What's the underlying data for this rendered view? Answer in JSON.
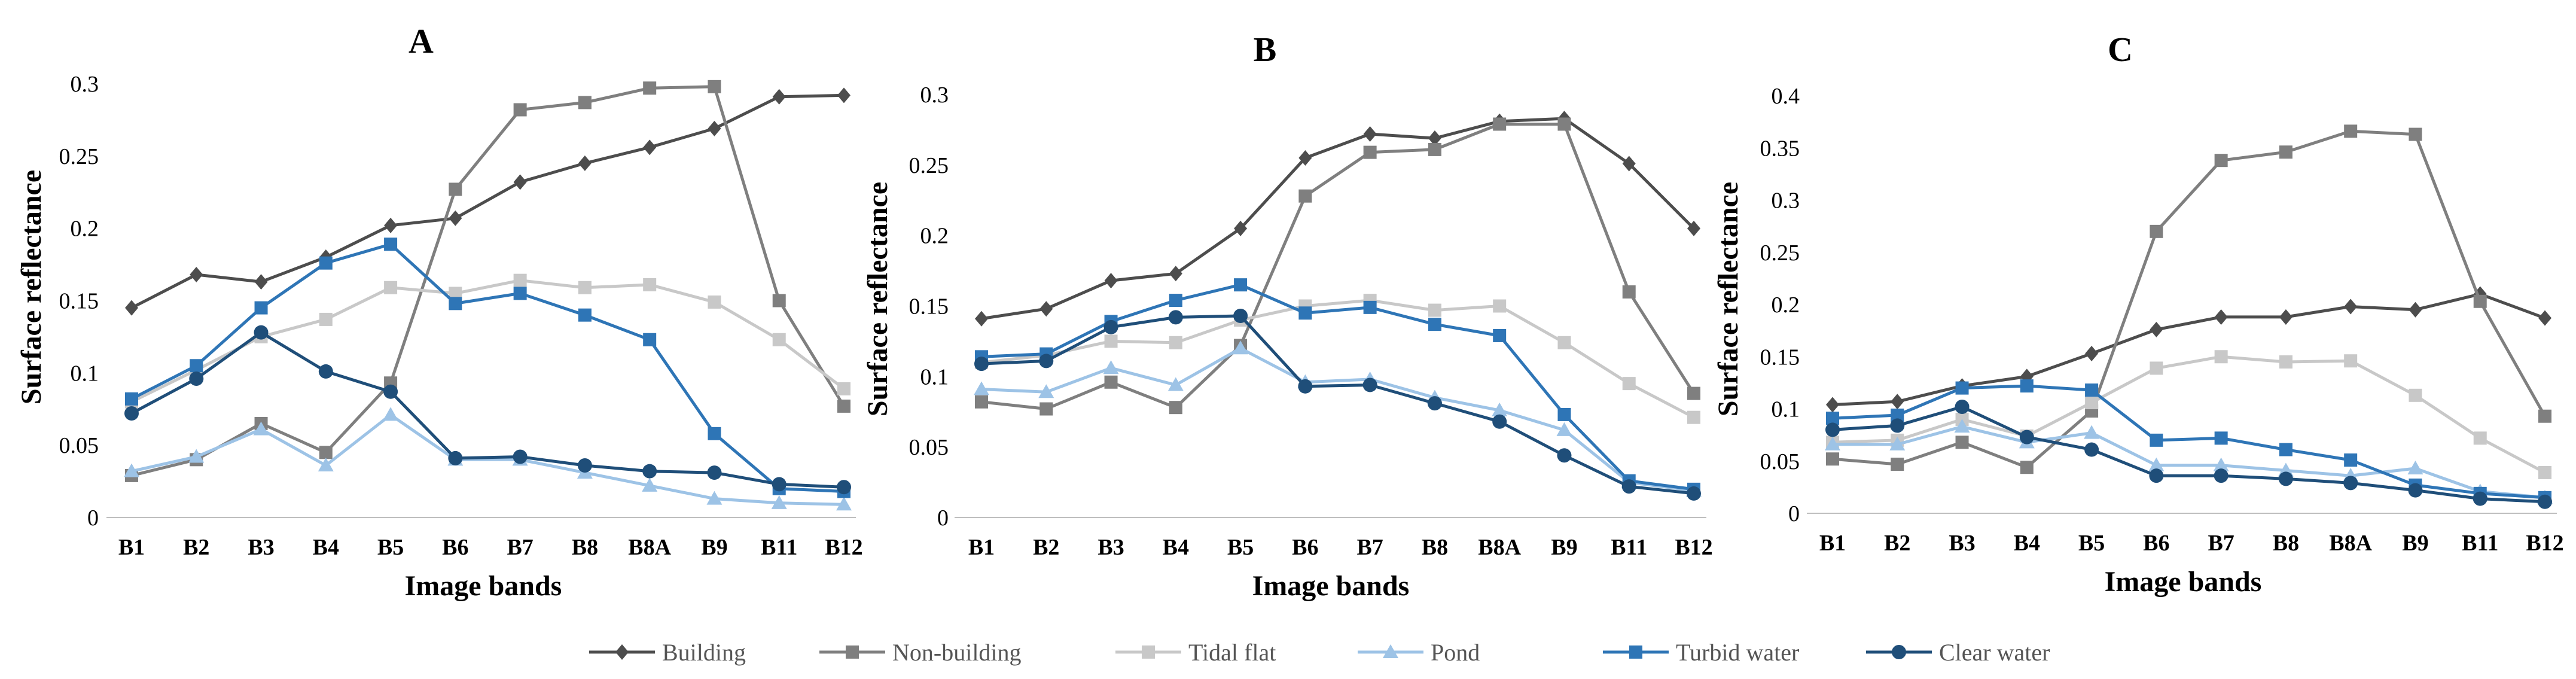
{
  "colors": {
    "Building": "#4d4d4d",
    "Non-building": "#7f7f7f",
    "Tidal flat": "#c8c8c8",
    "Pond": "#9dc3e6",
    "Turbid water": "#2e75b6",
    "Clear water": "#1f4e79"
  },
  "markers": {
    "Building": "diamond",
    "Non-building": "square",
    "Tidal flat": "square",
    "Pond": "triangle",
    "Turbid water": "square",
    "Clear water": "circle"
  },
  "legend": [
    "Building",
    "Non-building",
    "Tidal flat",
    "Pond",
    "Turbid water",
    "Clear water"
  ],
  "chart_data": [
    {
      "type": "line",
      "title": "A",
      "xlabel": "Image bands",
      "ylabel": "Surface reflectance",
      "ylim": [
        0,
        0.3
      ],
      "yticks": [
        0,
        0.05,
        0.1,
        0.15,
        0.2,
        0.25,
        0.3
      ],
      "ytick_labels": [
        "0",
        "0.05",
        "0.1",
        "0.15",
        "0.2",
        "0.25",
        "0.3"
      ],
      "categories": [
        "B1",
        "B2",
        "B3",
        "B4",
        "B5",
        "B6",
        "B7",
        "B8",
        "B8A",
        "B9",
        "B11",
        "B12"
      ],
      "series": [
        {
          "name": "Building",
          "values": [
            0.145,
            0.168,
            0.163,
            0.18,
            0.202,
            0.207,
            0.232,
            0.245,
            0.256,
            0.269,
            0.291,
            0.292
          ]
        },
        {
          "name": "Non-building",
          "values": [
            0.029,
            0.04,
            0.065,
            0.045,
            0.093,
            0.227,
            0.282,
            0.287,
            0.297,
            0.298,
            0.15,
            0.077
          ]
        },
        {
          "name": "Tidal flat",
          "values": [
            0.08,
            0.102,
            0.125,
            0.137,
            0.159,
            0.155,
            0.164,
            0.159,
            0.161,
            0.149,
            0.123,
            0.089
          ]
        },
        {
          "name": "Pond",
          "values": [
            0.032,
            0.042,
            0.061,
            0.036,
            0.071,
            0.04,
            0.04,
            0.031,
            0.022,
            0.013,
            0.01,
            0.009
          ]
        },
        {
          "name": "Turbid water",
          "values": [
            0.082,
            0.105,
            0.145,
            0.176,
            0.189,
            0.148,
            0.155,
            0.14,
            0.123,
            0.058,
            0.02,
            0.018
          ]
        },
        {
          "name": "Clear water",
          "values": [
            0.072,
            0.096,
            0.128,
            0.101,
            0.087,
            0.041,
            0.042,
            0.036,
            0.032,
            0.031,
            0.023,
            0.021
          ]
        }
      ]
    },
    {
      "type": "line",
      "title": "B",
      "xlabel": "Image bands",
      "ylabel": "Surface reflectance",
      "ylim": [
        0,
        0.3
      ],
      "yticks": [
        0,
        0.05,
        0.1,
        0.15,
        0.2,
        0.25,
        0.3
      ],
      "ytick_labels": [
        "0",
        "0.05",
        "0.1",
        "0.15",
        "0.2",
        "0.25",
        "0.3"
      ],
      "categories": [
        "B1",
        "B2",
        "B3",
        "B4",
        "B5",
        "B6",
        "B7",
        "B8",
        "B8A",
        "B9",
        "B11",
        "B12"
      ],
      "series": [
        {
          "name": "Building",
          "values": [
            0.141,
            0.148,
            0.168,
            0.173,
            0.205,
            0.255,
            0.272,
            0.269,
            0.281,
            0.283,
            0.251,
            0.205
          ]
        },
        {
          "name": "Non-building",
          "values": [
            0.082,
            0.077,
            0.096,
            0.078,
            0.122,
            0.228,
            0.259,
            0.261,
            0.279,
            0.279,
            0.16,
            0.088
          ]
        },
        {
          "name": "Tidal flat",
          "values": [
            0.11,
            0.115,
            0.125,
            0.124,
            0.14,
            0.15,
            0.154,
            0.147,
            0.15,
            0.124,
            0.095,
            0.071
          ]
        },
        {
          "name": "Pond",
          "values": [
            0.091,
            0.089,
            0.106,
            0.094,
            0.12,
            0.096,
            0.098,
            0.085,
            0.076,
            0.062,
            0.025,
            0.019
          ]
        },
        {
          "name": "Turbid water",
          "values": [
            0.114,
            0.116,
            0.139,
            0.154,
            0.165,
            0.145,
            0.149,
            0.137,
            0.129,
            0.073,
            0.026,
            0.02
          ]
        },
        {
          "name": "Clear water",
          "values": [
            0.109,
            0.111,
            0.135,
            0.142,
            0.143,
            0.093,
            0.094,
            0.081,
            0.068,
            0.044,
            0.022,
            0.017
          ]
        }
      ]
    },
    {
      "type": "line",
      "title": "C",
      "xlabel": "Image bands",
      "ylabel": "Surface reflectance",
      "ylim": [
        0,
        0.4
      ],
      "yticks": [
        0,
        0.05,
        0.1,
        0.15,
        0.2,
        0.25,
        0.3,
        0.35,
        0.4
      ],
      "ytick_labels": [
        "0",
        "0.05",
        "0.1",
        "0.15",
        "0.2",
        "0.25",
        "0.3",
        "0.35",
        "0.4"
      ],
      "categories": [
        "B1",
        "B2",
        "B3",
        "B4",
        "B5",
        "B6",
        "B7",
        "B8",
        "B8A",
        "B9",
        "B11",
        "B12"
      ],
      "series": [
        {
          "name": "Building",
          "values": [
            0.104,
            0.107,
            0.122,
            0.131,
            0.153,
            0.176,
            0.188,
            0.188,
            0.198,
            0.195,
            0.21,
            0.187
          ]
        },
        {
          "name": "Non-building",
          "values": [
            0.052,
            0.047,
            0.068,
            0.044,
            0.098,
            0.27,
            0.338,
            0.346,
            0.366,
            0.363,
            0.203,
            0.093
          ]
        },
        {
          "name": "Tidal flat",
          "values": [
            0.068,
            0.07,
            0.09,
            0.074,
            0.106,
            0.139,
            0.15,
            0.145,
            0.146,
            0.113,
            0.072,
            0.039
          ]
        },
        {
          "name": "Pond",
          "values": [
            0.066,
            0.066,
            0.083,
            0.068,
            0.077,
            0.046,
            0.046,
            0.041,
            0.036,
            0.043,
            0.021,
            0.015
          ]
        },
        {
          "name": "Turbid water",
          "values": [
            0.091,
            0.094,
            0.12,
            0.122,
            0.118,
            0.07,
            0.072,
            0.061,
            0.051,
            0.027,
            0.019,
            0.015
          ]
        },
        {
          "name": "Clear water",
          "values": [
            0.08,
            0.084,
            0.102,
            0.073,
            0.061,
            0.036,
            0.036,
            0.033,
            0.029,
            0.022,
            0.014,
            0.011
          ]
        }
      ]
    }
  ]
}
